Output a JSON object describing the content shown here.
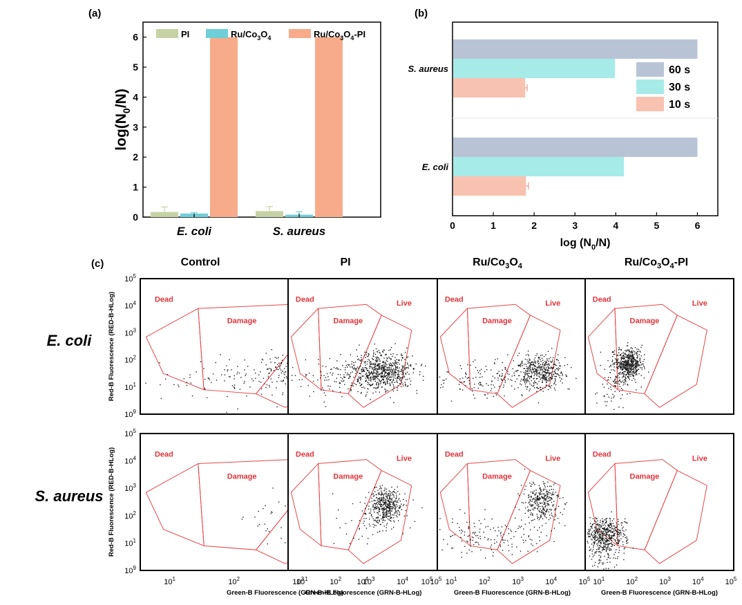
{
  "panel_labels": {
    "a": "(a)",
    "b": "(b)",
    "c": "(c)"
  },
  "colors": {
    "PI": "#c5d2a3",
    "Ru_Co3O4": "#6ecfd8",
    "Ru_Co3O4_PI": "#f7ab8a",
    "s60": "#b8c4d6",
    "s30": "#a6ebe7",
    "s10": "#f8c2b0",
    "gate": "#e8464a",
    "gate_text": "#e0353b",
    "dots": "#1a1a1a"
  },
  "chart_data": [
    {
      "id": "a",
      "type": "bar",
      "title": "",
      "xlabel": "",
      "ylabel": {
        "pre": "log(N",
        "sub": "0",
        "post": "/N)"
      },
      "ylim": [
        0,
        6.5
      ],
      "yticks": [
        "0",
        "1",
        "2",
        "3",
        "4",
        "5",
        "6"
      ],
      "categories": [
        "E. coli",
        "S. aureus"
      ],
      "legend_placement": "top",
      "series": [
        {
          "name": "PI",
          "legend": {
            "pre": "PI"
          },
          "values": [
            0.17,
            0.2
          ],
          "errors": [
            0.17,
            0.15
          ]
        },
        {
          "name": "Ru/Co3O4",
          "legend": {
            "pre": "Ru/Co",
            "sub1": "3",
            "mid": "O",
            "sub2": "4"
          },
          "values": [
            0.12,
            0.08
          ],
          "errors": [
            0.03,
            0.1
          ]
        },
        {
          "name": "Ru/Co3O4-PI",
          "legend": {
            "pre": "Ru/Co",
            "sub1": "3",
            "mid": "O",
            "sub2": "4",
            "post": "-PI"
          },
          "values": [
            6,
            6
          ],
          "errors": [
            0,
            0
          ]
        }
      ]
    },
    {
      "id": "b",
      "type": "bar",
      "orientation": "horizontal",
      "title": "",
      "ylabel": "",
      "xlabel": {
        "pre": "log (N",
        "sub": "0",
        "post": "/N)"
      },
      "xlim": [
        0,
        6.5
      ],
      "xticks": [
        "0",
        "1",
        "2",
        "3",
        "4",
        "5",
        "6"
      ],
      "categories": [
        "S. aureus",
        "E. coli"
      ],
      "legend_placement": "right",
      "series": [
        {
          "name": "60 s",
          "values": [
            6,
            6
          ],
          "errors": [
            0,
            0
          ]
        },
        {
          "name": "30 s",
          "values": [
            3.98,
            4.2
          ],
          "errors": [
            0,
            0
          ]
        },
        {
          "name": "10 s",
          "values": [
            1.78,
            1.8
          ],
          "errors": [
            0.05,
            0.06
          ]
        }
      ]
    },
    {
      "id": "c",
      "type": "scatter",
      "description_columns": [
        {
          "pre": "Control"
        },
        {
          "pre": "PI"
        },
        {
          "pre": "Ru/Co",
          "sub1": "3",
          "mid": "O",
          "sub2": "4"
        },
        {
          "pre": "Ru/Co",
          "sub1": "3",
          "mid": "O",
          "sub2": "4",
          "post": "-PI"
        }
      ],
      "rows": [
        "E. coli",
        "S. aureus"
      ],
      "xlabel": "Green-B Fluorescence (GRN-B-HLog)",
      "ylabel": "Red-B Fluorescence (RED-B-HLog)",
      "xticks": [
        {
          "b": "10",
          "e": "1"
        },
        {
          "b": "10",
          "e": "2"
        },
        {
          "b": "10",
          "e": "3"
        },
        {
          "b": "10",
          "e": "4"
        },
        {
          "b": "10",
          "e": "5"
        }
      ],
      "yticks": [
        {
          "b": "10",
          "e": "9"
        },
        {
          "b": "10",
          "e": "1"
        },
        {
          "b": "10",
          "e": "2"
        },
        {
          "b": "10",
          "e": "3"
        },
        {
          "b": "10",
          "e": "4"
        },
        {
          "b": "10",
          "e": "5"
        }
      ],
      "gate_labels": {
        "dead": "Dead",
        "damage": "Damage",
        "live": "Live"
      },
      "xlim_log": [
        0.5,
        5
      ],
      "ylim_log": [
        0,
        5
      ],
      "populations": [
        [
          {
            "cx": 3.4,
            "cy": 1.65,
            "sx": 0.45,
            "sy": 0.3,
            "n": 650,
            "ex": 2.2,
            "ey": 1.3,
            "esx": 0.8,
            "esy": 0.35,
            "en": 130
          },
          {
            "cx": 3.3,
            "cy": 1.6,
            "sx": 0.45,
            "sy": 0.3,
            "n": 650,
            "ex": 2.3,
            "ey": 1.3,
            "esx": 0.85,
            "esy": 0.35,
            "en": 170
          },
          {
            "cx": 3.6,
            "cy": 1.6,
            "sx": 0.35,
            "sy": 0.25,
            "n": 420,
            "ex": 2.2,
            "ey": 1.3,
            "esx": 0.9,
            "esy": 0.3,
            "en": 180
          },
          {
            "cx": 1.8,
            "cy": 1.9,
            "sx": 0.2,
            "sy": 0.22,
            "n": 520,
            "ex": 1.4,
            "ey": 1.2,
            "esx": 0.3,
            "esy": 0.4,
            "en": 120
          }
        ],
        [
          {
            "cx": 3.4,
            "cy": 2.3,
            "sx": 0.25,
            "sy": 0.28,
            "n": 420,
            "ex": 3.0,
            "ey": 1.7,
            "esx": 0.5,
            "esy": 0.4,
            "en": 60
          },
          {
            "cx": 3.4,
            "cy": 2.4,
            "sx": 0.25,
            "sy": 0.28,
            "n": 420,
            "ex": 3.0,
            "ey": 1.8,
            "esx": 0.5,
            "esy": 0.4,
            "en": 60
          },
          {
            "cx": 3.6,
            "cy": 2.5,
            "sx": 0.28,
            "sy": 0.3,
            "n": 320,
            "ex": 2.0,
            "ey": 1.3,
            "esx": 0.9,
            "esy": 0.3,
            "en": 160
          },
          {
            "cx": 1.1,
            "cy": 1.35,
            "sx": 0.3,
            "sy": 0.25,
            "n": 420,
            "ex": 1.0,
            "ey": 0.8,
            "esx": 0.3,
            "esy": 0.4,
            "en": 130
          }
        ]
      ]
    }
  ]
}
